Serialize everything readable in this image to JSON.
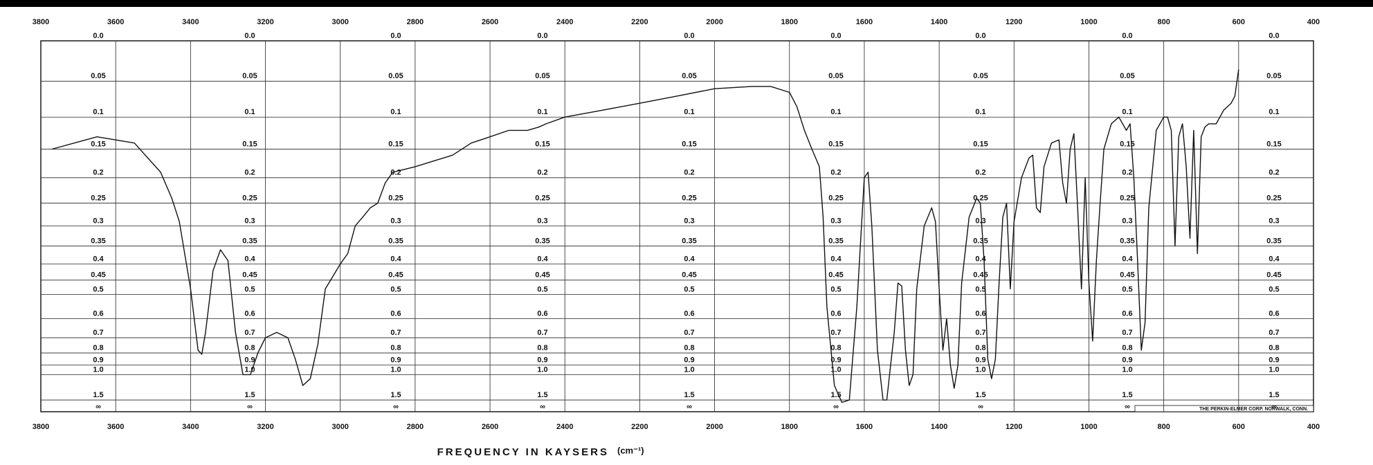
{
  "chart_data": {
    "type": "line",
    "x_label": "FREQUENCY IN KAYSERS",
    "x_unit": "(cm⁻¹)",
    "note": "THE PERKIN-ELMER CORP. NORWALK, CONN.",
    "y_scale": "absorbance",
    "color": "#111111",
    "grid": true,
    "xlim": [
      3800,
      400
    ],
    "xticks": [
      3800,
      3600,
      3400,
      3200,
      3000,
      2800,
      2600,
      2400,
      2200,
      2000,
      1800,
      1600,
      1400,
      1200,
      1000,
      800,
      600,
      400
    ],
    "ylim": [
      0,
      null
    ],
    "yticks": [
      {
        "value": 0,
        "label": "0.0"
      },
      0.05,
      0.1,
      0.15,
      0.2,
      0.25,
      0.3,
      0.35,
      0.4,
      0.45,
      0.5,
      0.6,
      0.7,
      0.8,
      0.9,
      {
        "value": 1,
        "label": "1.0"
      },
      1.5,
      {
        "value": null,
        "label": "∞"
      }
    ],
    "x": [
      3770,
      3650,
      3550,
      3480,
      3450,
      3430,
      3400,
      3380,
      3370,
      3360,
      3340,
      3320,
      3300,
      3280,
      3260,
      3240,
      3220,
      3200,
      3170,
      3140,
      3120,
      3100,
      3080,
      3060,
      3040,
      3000,
      2980,
      2960,
      2940,
      2920,
      2900,
      2880,
      2860,
      2800,
      2750,
      2700,
      2650,
      2600,
      2550,
      2500,
      2470,
      2450,
      2400,
      2300,
      2200,
      2100,
      2000,
      1900,
      1850,
      1800,
      1780,
      1760,
      1740,
      1720,
      1710,
      1700,
      1680,
      1660,
      1640,
      1620,
      1600,
      1590,
      1580,
      1565,
      1550,
      1540,
      1520,
      1510,
      1500,
      1490,
      1480,
      1470,
      1460,
      1440,
      1420,
      1410,
      1400,
      1390,
      1380,
      1370,
      1360,
      1350,
      1340,
      1320,
      1300,
      1290,
      1280,
      1270,
      1260,
      1250,
      1240,
      1230,
      1220,
      1210,
      1200,
      1180,
      1160,
      1150,
      1140,
      1130,
      1120,
      1100,
      1080,
      1070,
      1060,
      1050,
      1040,
      1030,
      1020,
      1010,
      1000,
      990,
      980,
      970,
      960,
      940,
      920,
      900,
      890,
      880,
      870,
      860,
      850,
      840,
      820,
      800,
      790,
      780,
      770,
      760,
      750,
      740,
      730,
      720,
      710,
      700,
      690,
      680,
      660,
      640,
      620,
      610,
      600
    ],
    "values": [
      0.15,
      0.13,
      0.14,
      0.19,
      0.24,
      0.29,
      0.48,
      0.78,
      0.81,
      0.67,
      0.42,
      0.36,
      0.39,
      0.67,
      1.0,
      1.0,
      0.8,
      0.7,
      0.67,
      0.7,
      0.85,
      1.15,
      1.05,
      0.74,
      0.48,
      0.4,
      0.37,
      0.3,
      0.28,
      0.26,
      0.25,
      0.21,
      0.19,
      0.18,
      0.17,
      0.16,
      0.14,
      0.13,
      0.12,
      0.12,
      0.115,
      0.11,
      0.1,
      0.09,
      0.08,
      0.07,
      0.06,
      0.057,
      0.057,
      0.065,
      0.085,
      0.12,
      0.15,
      0.18,
      0.28,
      0.55,
      1.15,
      1.6,
      1.5,
      0.55,
      0.2,
      0.19,
      0.3,
      0.78,
      1.5,
      1.5,
      0.67,
      0.46,
      0.47,
      0.78,
      1.15,
      1.0,
      0.48,
      0.3,
      0.26,
      0.29,
      0.48,
      0.78,
      0.6,
      0.9,
      1.2,
      0.9,
      0.46,
      0.28,
      0.24,
      0.25,
      0.39,
      0.85,
      1.05,
      0.85,
      0.46,
      0.28,
      0.25,
      0.48,
      0.29,
      0.2,
      0.165,
      0.16,
      0.26,
      0.27,
      0.18,
      0.14,
      0.135,
      0.21,
      0.25,
      0.15,
      0.125,
      0.26,
      0.48,
      0.2,
      0.46,
      0.72,
      0.39,
      0.25,
      0.15,
      0.11,
      0.1,
      0.12,
      0.11,
      0.2,
      0.39,
      0.78,
      0.62,
      0.26,
      0.12,
      0.1,
      0.1,
      0.12,
      0.35,
      0.13,
      0.11,
      0.18,
      0.33,
      0.12,
      0.37,
      0.13,
      0.115,
      0.11,
      0.11,
      0.09,
      0.08,
      0.07,
      0.035
    ]
  }
}
